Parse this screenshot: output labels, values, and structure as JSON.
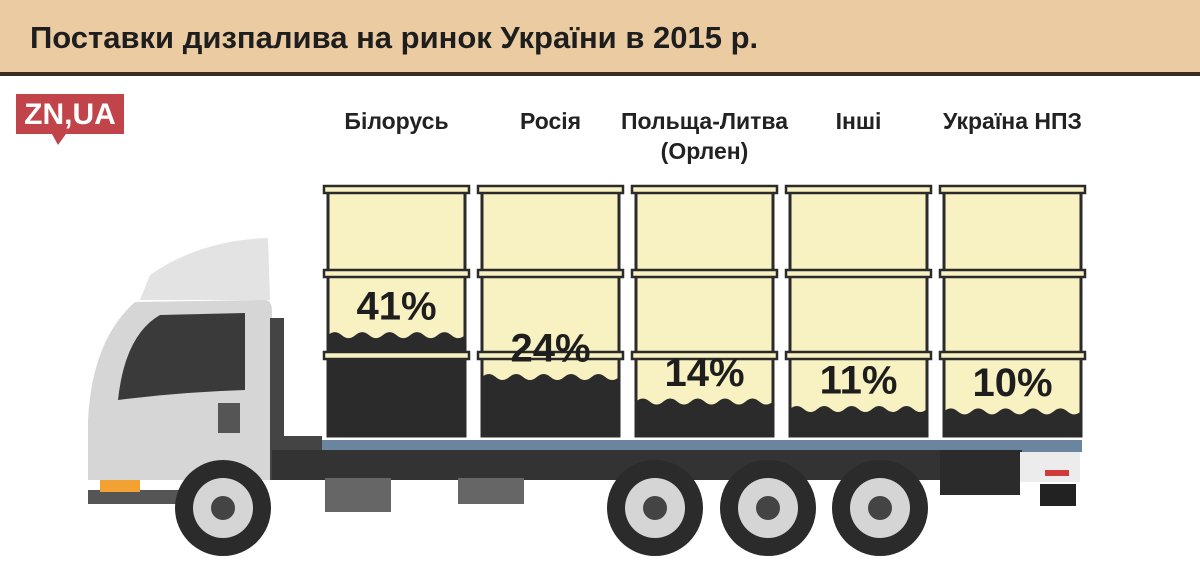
{
  "chart_data": {
    "type": "barrel",
    "title": "Поставки дизпалива на ринок України в 2015 р.",
    "logo": "ZN,UA",
    "categories": [
      "Білорусь",
      "Росія",
      "Польща-Литва (Орлен)",
      "Інші",
      "Україна НПЗ"
    ],
    "values": [
      41,
      24,
      14,
      11,
      10
    ],
    "value_labels": [
      "41%",
      "24%",
      "14%",
      "11%",
      "10%"
    ],
    "ylim": [
      0,
      100
    ],
    "color": "#2b2b2b"
  }
}
